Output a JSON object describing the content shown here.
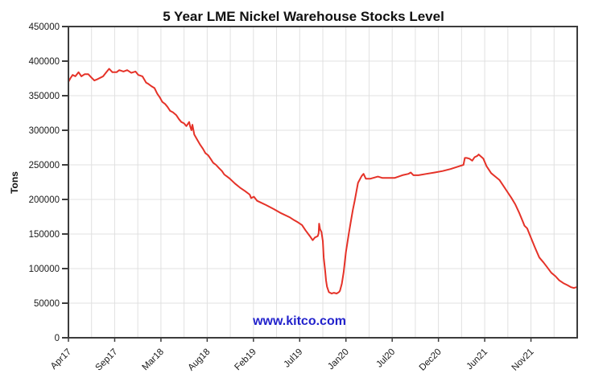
{
  "chart_data": {
    "type": "line",
    "title": "5 Year LME Nickel Warehouse Stocks Level",
    "xlabel": "",
    "ylabel": "Tons",
    "watermark": "www.kitco.com",
    "legend": "none",
    "grid": "horizontal every 50000; vertical every half tick interval; light gray",
    "ylim": [
      0,
      450000
    ],
    "y_ticks": [
      0,
      50000,
      100000,
      150000,
      200000,
      250000,
      300000,
      350000,
      400000,
      450000
    ],
    "x_unit": "labeled-tick interval index (0 = Apr17 tick ... 10 = Nov21 tick; axis extends to 11)",
    "xlim": [
      0,
      11
    ],
    "x_ticks": [
      {
        "pos": 0,
        "label": "Apr17"
      },
      {
        "pos": 1,
        "label": "Sep17"
      },
      {
        "pos": 2,
        "label": "Mar18"
      },
      {
        "pos": 3,
        "label": "Aug18"
      },
      {
        "pos": 4,
        "label": "Feb19"
      },
      {
        "pos": 5,
        "label": "Jul19"
      },
      {
        "pos": 6,
        "label": "Jan20"
      },
      {
        "pos": 7,
        "label": "Jul20"
      },
      {
        "pos": 8,
        "label": "Dec20"
      },
      {
        "pos": 9,
        "label": "Jun21"
      },
      {
        "pos": 10,
        "label": "Nov21"
      }
    ],
    "series": [
      {
        "name": "LME Nickel Warehouse Stocks",
        "unit": "Tons",
        "color": "#e53228",
        "points": [
          [
            0,
            370000
          ],
          [
            0.04,
            375000
          ],
          [
            0.09,
            380000
          ],
          [
            0.15,
            378000
          ],
          [
            0.22,
            384000
          ],
          [
            0.28,
            378000
          ],
          [
            0.35,
            381000
          ],
          [
            0.43,
            381000
          ],
          [
            0.5,
            376000
          ],
          [
            0.56,
            372000
          ],
          [
            0.63,
            374000
          ],
          [
            0.75,
            378000
          ],
          [
            0.82,
            384000
          ],
          [
            0.88,
            389000
          ],
          [
            0.95,
            384000
          ],
          [
            1.04,
            384000
          ],
          [
            1.1,
            387000
          ],
          [
            1.19,
            385000
          ],
          [
            1.27,
            387000
          ],
          [
            1.36,
            383000
          ],
          [
            1.45,
            385000
          ],
          [
            1.51,
            380000
          ],
          [
            1.6,
            378000
          ],
          [
            1.68,
            369000
          ],
          [
            1.73,
            367000
          ],
          [
            1.79,
            364000
          ],
          [
            1.86,
            361000
          ],
          [
            1.92,
            353000
          ],
          [
            1.98,
            347000
          ],
          [
            2.03,
            341000
          ],
          [
            2.09,
            338000
          ],
          [
            2.14,
            334000
          ],
          [
            2.2,
            328000
          ],
          [
            2.26,
            326000
          ],
          [
            2.33,
            322000
          ],
          [
            2.39,
            316000
          ],
          [
            2.44,
            312000
          ],
          [
            2.5,
            310000
          ],
          [
            2.55,
            306000
          ],
          [
            2.61,
            312000
          ],
          [
            2.63,
            306000
          ],
          [
            2.66,
            300000
          ],
          [
            2.68,
            308000
          ],
          [
            2.72,
            294000
          ],
          [
            2.78,
            287000
          ],
          [
            2.85,
            279000
          ],
          [
            2.91,
            273000
          ],
          [
            2.96,
            267000
          ],
          [
            3.02,
            264000
          ],
          [
            3.08,
            258000
          ],
          [
            3.13,
            253000
          ],
          [
            3.19,
            250000
          ],
          [
            3.26,
            245000
          ],
          [
            3.32,
            241000
          ],
          [
            3.37,
            236000
          ],
          [
            3.43,
            233000
          ],
          [
            3.49,
            230000
          ],
          [
            3.6,
            223000
          ],
          [
            3.71,
            217000
          ],
          [
            3.82,
            212000
          ],
          [
            3.92,
            207000
          ],
          [
            3.95,
            202000
          ],
          [
            4.01,
            204000
          ],
          [
            4.08,
            198000
          ],
          [
            4.27,
            192000
          ],
          [
            4.44,
            186000
          ],
          [
            4.6,
            180000
          ],
          [
            4.79,
            174000
          ],
          [
            4.88,
            170000
          ],
          [
            4.96,
            167000
          ],
          [
            5.05,
            163000
          ],
          [
            5.13,
            155000
          ],
          [
            5.22,
            147000
          ],
          [
            5.28,
            141000
          ],
          [
            5.33,
            145000
          ],
          [
            5.39,
            147000
          ],
          [
            5.41,
            151000
          ],
          [
            5.42,
            165000
          ],
          [
            5.44,
            157000
          ],
          [
            5.47,
            153000
          ],
          [
            5.5,
            140000
          ],
          [
            5.52,
            116000
          ],
          [
            5.55,
            97000
          ],
          [
            5.57,
            83000
          ],
          [
            5.59,
            74000
          ],
          [
            5.63,
            66000
          ],
          [
            5.69,
            64000
          ],
          [
            5.74,
            65000
          ],
          [
            5.8,
            64000
          ],
          [
            5.85,
            66000
          ],
          [
            5.87,
            68000
          ],
          [
            5.91,
            78000
          ],
          [
            5.95,
            95000
          ],
          [
            6,
            124000
          ],
          [
            6.06,
            150000
          ],
          [
            6.1,
            166000
          ],
          [
            6.15,
            185000
          ],
          [
            6.19,
            198000
          ],
          [
            6.26,
            224000
          ],
          [
            6.34,
            234000
          ],
          [
            6.38,
            237000
          ],
          [
            6.43,
            230000
          ],
          [
            6.53,
            230000
          ],
          [
            6.69,
            233000
          ],
          [
            6.79,
            231000
          ],
          [
            6.88,
            231000
          ],
          [
            7.05,
            231000
          ],
          [
            7.22,
            235000
          ],
          [
            7.35,
            237000
          ],
          [
            7.4,
            239000
          ],
          [
            7.46,
            235000
          ],
          [
            7.57,
            235000
          ],
          [
            7.74,
            237000
          ],
          [
            7.92,
            239000
          ],
          [
            8.09,
            241000
          ],
          [
            8.26,
            244000
          ],
          [
            8.45,
            248000
          ],
          [
            8.54,
            250000
          ],
          [
            8.57,
            260000
          ],
          [
            8.61,
            260000
          ],
          [
            8.67,
            259000
          ],
          [
            8.73,
            256000
          ],
          [
            8.78,
            261000
          ],
          [
            8.84,
            263000
          ],
          [
            8.87,
            265000
          ],
          [
            8.97,
            259000
          ],
          [
            9.04,
            248000
          ],
          [
            9.14,
            238000
          ],
          [
            9.23,
            233000
          ],
          [
            9.32,
            228000
          ],
          [
            9.4,
            220000
          ],
          [
            9.49,
            211000
          ],
          [
            9.58,
            202000
          ],
          [
            9.66,
            193000
          ],
          [
            9.75,
            180000
          ],
          [
            9.83,
            167000
          ],
          [
            9.86,
            162000
          ],
          [
            9.92,
            158000
          ],
          [
            10.01,
            143000
          ],
          [
            10.09,
            130000
          ],
          [
            10.18,
            116000
          ],
          [
            10.27,
            109000
          ],
          [
            10.35,
            102000
          ],
          [
            10.44,
            94000
          ],
          [
            10.53,
            89000
          ],
          [
            10.61,
            83000
          ],
          [
            10.7,
            79000
          ],
          [
            10.79,
            76000
          ],
          [
            10.87,
            73000
          ],
          [
            10.93,
            72000
          ],
          [
            10.98,
            73000
          ]
        ]
      }
    ]
  },
  "colors": {
    "line": "#e53228",
    "watermark": "#2222cc",
    "grid": "#e0e0e0",
    "axis": "#3c3c3c",
    "text": "#1a1a1a",
    "background": "#ffffff"
  }
}
